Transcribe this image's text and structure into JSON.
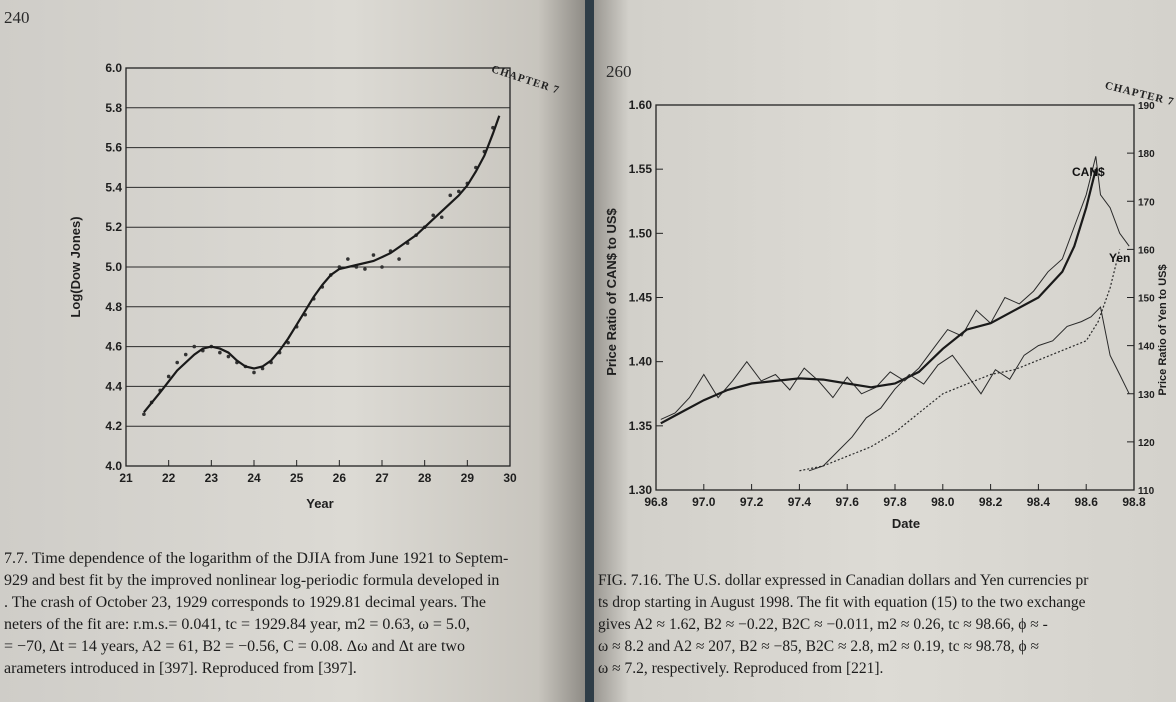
{
  "left_page": {
    "page_number": "240",
    "chapter_label": "CHAPTER 7",
    "caption_lines": [
      "7.7. Time dependence of the logarithm of the DJIA from June 1921 to Septem-",
      "929 and best fit by the improved nonlinear log-periodic formula developed in",
      ". The crash of October 23, 1929 corresponds to 1929.81 decimal years. The",
      "neters of the fit are: r.m.s.= 0.041, tc = 1929.84 year, m2 = 0.63, ω = 5.0,",
      "= −70, Δt = 14 years, A2 = 61, B2 = −0.56, C = 0.08. Δω and Δt are two",
      "arameters introduced in [397]. Reproduced from [397]."
    ]
  },
  "right_page": {
    "page_number": "260",
    "chapter_label": "CHAPTER 7",
    "caption_lines": [
      "FIG. 7.16. The U.S. dollar expressed in Canadian dollars and Yen currencies pr",
      "ts drop starting in August 1998. The fit with equation (15) to the two exchange",
      "gives A2 ≈ 1.62, B2 ≈ −0.22, B2C ≈ −0.011, m2 ≈ 0.26, tc ≈ 98.66, ϕ ≈ -",
      "ω ≈ 8.2 and A2 ≈ 207, B2 ≈ −85, B2C ≈ 2.8, m2 ≈ 0.19, tc ≈ 98.78, ϕ ≈",
      "ω ≈ 7.2, respectively. Reproduced from [221]."
    ]
  },
  "chart_data": [
    {
      "type": "scatter",
      "xlabel": "Year",
      "ylabel": "Log(Dow Jones)",
      "xlim": [
        21,
        30
      ],
      "ylim": [
        4.0,
        6.0
      ],
      "x_ticks": [
        "21",
        "22",
        "23",
        "24",
        "25",
        "26",
        "27",
        "28",
        "29",
        "30"
      ],
      "y_ticks": [
        "4.0",
        "4.2",
        "4.4",
        "4.6",
        "4.8",
        "5.0",
        "5.2",
        "5.4",
        "5.6",
        "5.8",
        "6.0"
      ],
      "grid": "horizontal",
      "series": [
        {
          "style": "dots",
          "x": [
            21.42,
            21.6,
            21.8,
            22.0,
            22.2,
            22.4,
            22.6,
            22.8,
            23.0,
            23.2,
            23.4,
            23.6,
            23.8,
            24.0,
            24.2,
            24.4,
            24.6,
            24.8,
            25.0,
            25.2,
            25.4,
            25.6,
            25.8,
            26.0,
            26.2,
            26.4,
            26.6,
            26.8,
            27.0,
            27.2,
            27.4,
            27.6,
            27.8,
            28.0,
            28.2,
            28.4,
            28.6,
            28.8,
            29.0,
            29.2,
            29.4,
            29.6
          ],
          "y": [
            4.26,
            4.32,
            4.38,
            4.45,
            4.52,
            4.56,
            4.6,
            4.58,
            4.6,
            4.57,
            4.55,
            4.52,
            4.5,
            4.47,
            4.49,
            4.52,
            4.57,
            4.62,
            4.7,
            4.76,
            4.84,
            4.9,
            4.96,
            5.0,
            5.04,
            5.0,
            4.99,
            5.06,
            5.0,
            5.08,
            5.04,
            5.12,
            5.16,
            5.2,
            5.26,
            5.25,
            5.36,
            5.38,
            5.42,
            5.5,
            5.58,
            5.7
          ]
        },
        {
          "style": "fit",
          "x": [
            21.42,
            21.8,
            22.2,
            22.6,
            22.8,
            23.0,
            23.2,
            23.4,
            23.6,
            23.8,
            24.0,
            24.2,
            24.4,
            24.6,
            24.8,
            25.0,
            25.2,
            25.4,
            25.6,
            25.8,
            26.0,
            26.4,
            26.8,
            27.0,
            27.2,
            27.4,
            27.6,
            27.8,
            28.0,
            28.2,
            28.4,
            28.6,
            28.8,
            29.0,
            29.2,
            29.4,
            29.6,
            29.75
          ],
          "y": [
            4.27,
            4.37,
            4.48,
            4.56,
            4.59,
            4.6,
            4.59,
            4.57,
            4.53,
            4.5,
            4.49,
            4.5,
            4.53,
            4.58,
            4.64,
            4.71,
            4.78,
            4.85,
            4.91,
            4.96,
            4.99,
            5.01,
            5.03,
            5.05,
            5.07,
            5.1,
            5.13,
            5.16,
            5.2,
            5.24,
            5.28,
            5.32,
            5.36,
            5.41,
            5.48,
            5.56,
            5.67,
            5.76
          ]
        }
      ]
    },
    {
      "type": "line",
      "xlabel": "Date",
      "ylabel": "Price Ratio of CAN$ to US$",
      "y2label": "Price Ratio of Yen to US$",
      "xlim": [
        96.8,
        98.8
      ],
      "ylim": [
        1.3,
        1.6
      ],
      "y2lim": [
        110,
        190
      ],
      "x_ticks": [
        "96.8",
        "97.0",
        "97.2",
        "97.4",
        "97.6",
        "97.8",
        "98.0",
        "98.2",
        "98.4",
        "98.6",
        "98.8"
      ],
      "y_ticks": [
        "1.30",
        "1.35",
        "1.40",
        "1.45",
        "1.50",
        "1.55",
        "1.60"
      ],
      "y2_ticks": [
        "110",
        "120",
        "130",
        "140",
        "150",
        "160",
        "170",
        "180",
        "190"
      ],
      "series": [
        {
          "name": "CAN$",
          "style": "data",
          "x": [
            96.82,
            96.88,
            96.94,
            97.0,
            97.06,
            97.12,
            97.18,
            97.24,
            97.3,
            97.36,
            97.42,
            97.48,
            97.54,
            97.6,
            97.66,
            97.72,
            97.78,
            97.84,
            97.9,
            97.96,
            98.02,
            98.08,
            98.14,
            98.2,
            98.26,
            98.32,
            98.38,
            98.44,
            98.5,
            98.56,
            98.6,
            98.62,
            98.64,
            98.66,
            98.7,
            98.74,
            98.78
          ],
          "y": [
            1.355,
            1.36,
            1.372,
            1.39,
            1.372,
            1.385,
            1.4,
            1.385,
            1.39,
            1.378,
            1.395,
            1.385,
            1.372,
            1.388,
            1.375,
            1.38,
            1.392,
            1.385,
            1.395,
            1.41,
            1.425,
            1.42,
            1.44,
            1.43,
            1.45,
            1.445,
            1.455,
            1.47,
            1.48,
            1.51,
            1.53,
            1.545,
            1.56,
            1.53,
            1.52,
            1.5,
            1.49
          ]
        },
        {
          "name": "CAN$ fit",
          "style": "fit",
          "x": [
            96.82,
            96.9,
            97.0,
            97.1,
            97.2,
            97.3,
            97.4,
            97.5,
            97.6,
            97.7,
            97.8,
            97.9,
            98.0,
            98.1,
            98.2,
            98.3,
            98.4,
            98.5,
            98.55,
            98.6,
            98.64
          ],
          "y": [
            1.352,
            1.36,
            1.37,
            1.378,
            1.383,
            1.385,
            1.387,
            1.386,
            1.383,
            1.38,
            1.383,
            1.392,
            1.41,
            1.425,
            1.43,
            1.44,
            1.45,
            1.47,
            1.49,
            1.52,
            1.55
          ]
        },
        {
          "name": "Yen",
          "style": "data",
          "axis": "y2",
          "x": [
            97.44,
            97.5,
            97.56,
            97.62,
            97.68,
            97.74,
            97.8,
            97.86,
            97.92,
            97.98,
            98.04,
            98.1,
            98.16,
            98.22,
            98.28,
            98.34,
            98.4,
            98.46,
            98.52,
            98.58,
            98.62,
            98.66,
            98.7,
            98.74,
            98.78
          ],
          "y": [
            114,
            115,
            118,
            121,
            125,
            127,
            131,
            134,
            132,
            136,
            138,
            134,
            130,
            135,
            133,
            138,
            140,
            141,
            144,
            145,
            146,
            148,
            138,
            134,
            130
          ]
        },
        {
          "name": "Yen fit",
          "style": "dotted",
          "axis": "y2",
          "x": [
            97.4,
            97.5,
            97.6,
            97.7,
            97.8,
            97.9,
            98.0,
            98.1,
            98.2,
            98.3,
            98.4,
            98.5,
            98.6,
            98.65,
            98.7,
            98.74
          ],
          "y": [
            114,
            115,
            117,
            119,
            122,
            126,
            130,
            132,
            134,
            135,
            137,
            139,
            141,
            145,
            152,
            160
          ]
        }
      ]
    }
  ]
}
